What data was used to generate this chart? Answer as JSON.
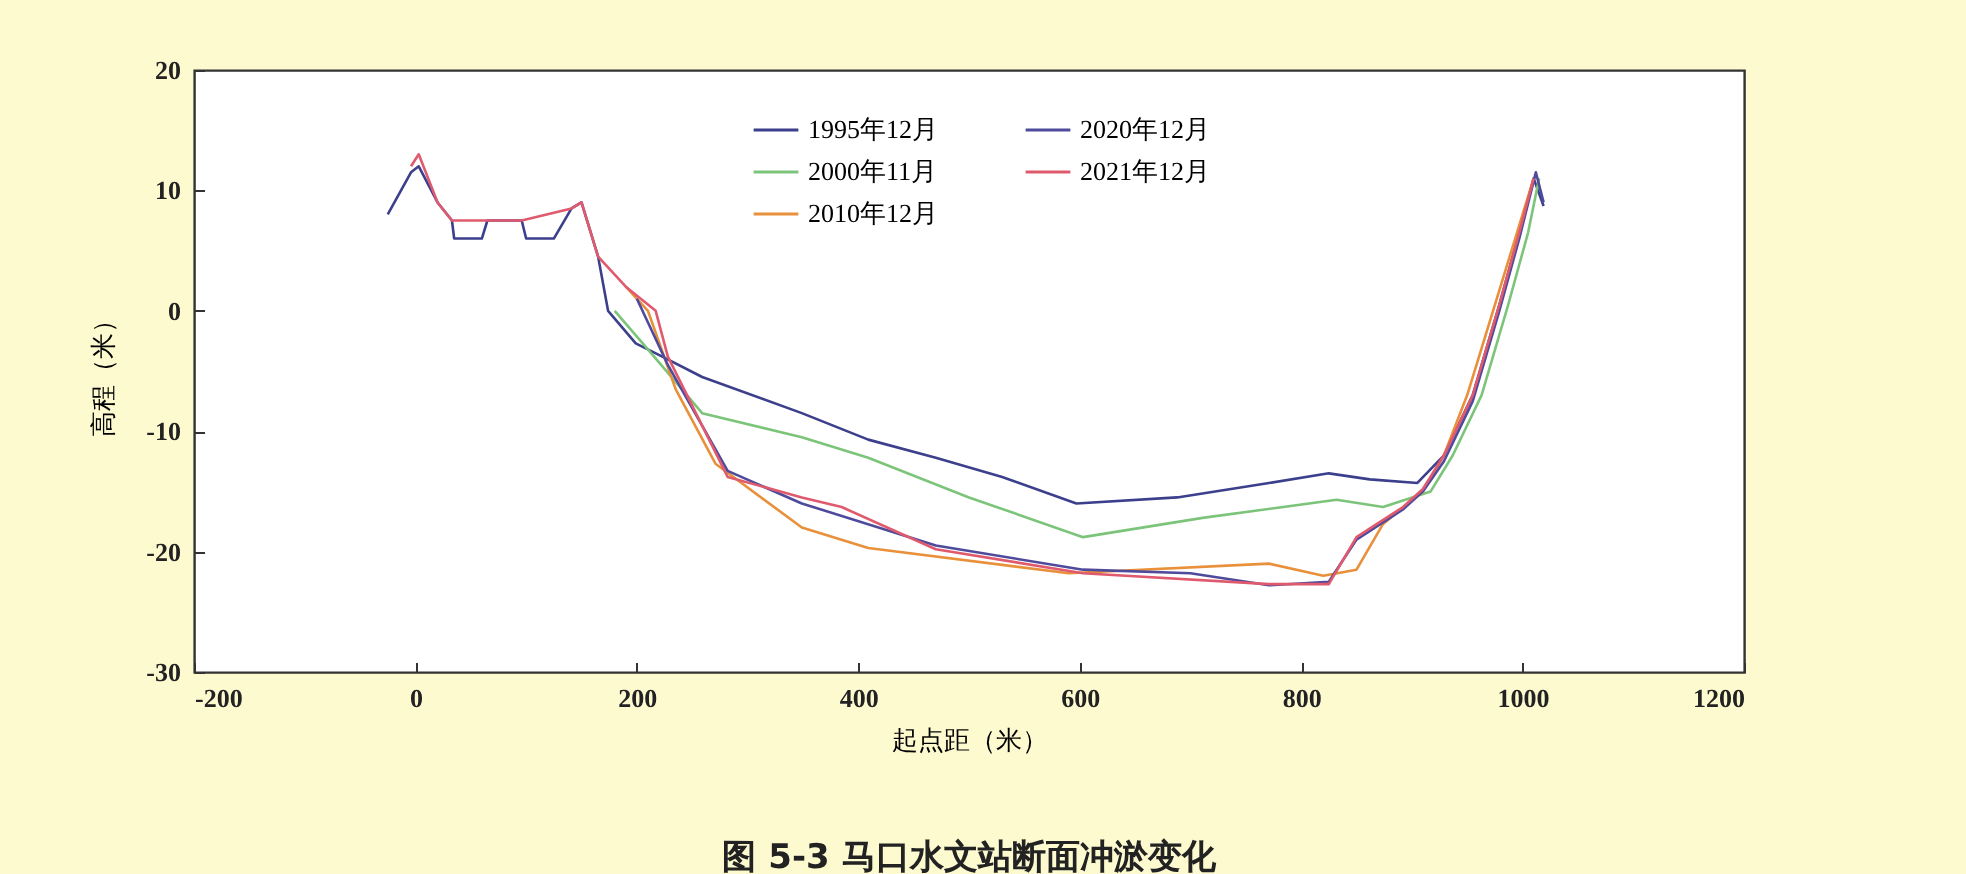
{
  "chart_data": {
    "type": "line",
    "title": "图 5-3   马口水文站断面冲淤变化",
    "xlabel": "起点距（米）",
    "ylabel": "高程（米）",
    "xlim": [
      -200,
      1200
    ],
    "xticks": [
      -200,
      0,
      200,
      400,
      600,
      800,
      1000,
      1200
    ],
    "ylim": [
      -30,
      20
    ],
    "yticks": [
      -30,
      -20,
      -10,
      0,
      10,
      20
    ],
    "grid": false,
    "legend": "top",
    "marker": "none",
    "line_style": "solid",
    "series": [
      {
        "name": "1995年12月",
        "color": "#3c3f8c",
        "x": [
          -25,
          -4,
          3,
          20,
          33,
          35,
          60,
          65,
          96,
          100,
          125,
          141,
          150,
          165,
          174,
          199,
          223,
          259,
          349,
          409,
          470,
          530,
          597,
          688,
          771,
          825,
          862,
          905,
          929,
          955,
          979,
          997,
          1010,
          1019
        ],
        "values": [
          8,
          11.5,
          12,
          9,
          7.5,
          6,
          6,
          7.5,
          7.5,
          6,
          6,
          8.5,
          9,
          4.5,
          0,
          -2.7,
          -3.8,
          -5.5,
          -8.5,
          -10.7,
          -12.2,
          -13.8,
          -16,
          -15.5,
          -14.3,
          -13.5,
          -14,
          -14.3,
          -12,
          -7,
          0.5,
          6.5,
          11,
          8.7
        ]
      },
      {
        "name": "2000年11月",
        "color": "#7cc47a",
        "x": [
          180,
          210,
          259,
          349,
          409,
          500,
          603,
          711,
          832,
          874,
          917,
          937,
          963,
          987,
          1005,
          1015
        ],
        "values": [
          0,
          -3.2,
          -8.5,
          -10.5,
          -12.2,
          -15.5,
          -18.8,
          -17.2,
          -15.7,
          -16.3,
          -15,
          -12,
          -7,
          0.5,
          6.5,
          11
        ]
      },
      {
        "name": "2010年12月",
        "color": "#e8903a",
        "x": [
          190,
          210,
          235,
          271,
          349,
          409,
          590,
          771,
          820,
          850,
          874,
          910,
          929,
          950,
          975,
          995,
          1010
        ],
        "values": [
          2,
          0,
          -6.5,
          -12.7,
          -18,
          -19.7,
          -21.8,
          -21,
          -22,
          -21.5,
          -17.7,
          -15,
          -12,
          -7,
          0.5,
          6.5,
          11
        ]
      },
      {
        "name": "2020年12月",
        "color": "#4e4a9c",
        "x": [
          200,
          228,
          282,
          349,
          470,
          603,
          700,
          771,
          825,
          850,
          892,
          910,
          929,
          955,
          979,
          997,
          1012,
          1019
        ],
        "values": [
          1,
          -4.5,
          -13.3,
          -16,
          -19.5,
          -21.5,
          -21.8,
          -22.8,
          -22.5,
          -19,
          -16.5,
          -15,
          -12.5,
          -7.5,
          0,
          6,
          11.5,
          9
        ]
      },
      {
        "name": "2021年12月",
        "color": "#e05a6e",
        "x": [
          -4,
          3,
          20,
          33,
          96,
          141,
          150,
          165,
          190,
          217,
          228,
          282,
          349,
          385,
          470,
          603,
          771,
          825,
          850,
          892,
          910,
          929,
          955,
          979,
          997,
          1010
        ],
        "values": [
          12,
          13,
          9,
          7.5,
          7.5,
          8.5,
          9,
          4.5,
          2,
          0,
          -3.8,
          -13.8,
          -15.5,
          -16.3,
          -19.8,
          -21.8,
          -22.7,
          -22.7,
          -18.8,
          -16.3,
          -14.8,
          -12,
          -7,
          0.5,
          6.5,
          11
        ]
      }
    ]
  }
}
